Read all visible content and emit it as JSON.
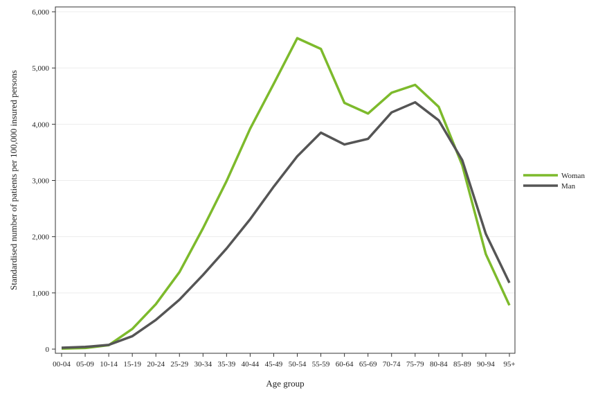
{
  "chart_data": {
    "type": "line",
    "title": "",
    "xlabel": "Age group",
    "ylabel": "Standardised number of patients per 100,000 insured persons",
    "categories": [
      "00-04",
      "05-09",
      "10-14",
      "15-19",
      "20-24",
      "25-29",
      "30-34",
      "35-39",
      "40-44",
      "45-49",
      "50-54",
      "55-59",
      "60-64",
      "65-69",
      "70-74",
      "75-79",
      "80-84",
      "85-89",
      "90-94",
      "95+"
    ],
    "ylim": [
      0,
      6000
    ],
    "yticks": [
      0,
      1000,
      2000,
      3000,
      4000,
      5000,
      6000
    ],
    "ytick_labels": [
      "0",
      "1,000",
      "2,000",
      "3,000",
      "4,000",
      "5,000",
      "6,000"
    ],
    "grid": true,
    "legend_position": "right",
    "series": [
      {
        "name": "Woman",
        "color": "#7dba2c",
        "values": [
          10,
          20,
          70,
          360,
          800,
          1370,
          2150,
          2990,
          3920,
          4720,
          5530,
          5340,
          4380,
          4190,
          4560,
          4700,
          4310,
          3270,
          1690,
          780
        ]
      },
      {
        "name": "Man",
        "color": "#555555",
        "values": [
          25,
          40,
          75,
          230,
          520,
          880,
          1320,
          1790,
          2310,
          2890,
          3430,
          3850,
          3640,
          3740,
          4210,
          4390,
          4070,
          3360,
          2050,
          1180
        ]
      }
    ]
  }
}
